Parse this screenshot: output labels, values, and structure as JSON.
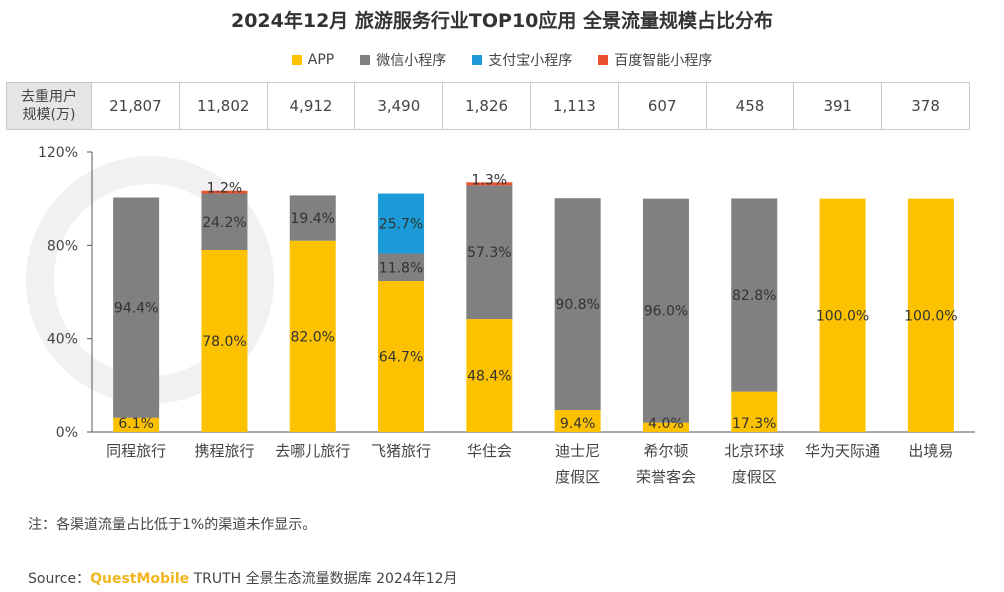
{
  "title": "2024年12月 旅游服务行业TOP10应用 全景流量规模占比分布",
  "table": {
    "header": "去重用户规模(万)",
    "values": [
      "21,807",
      "11,802",
      "4,912",
      "3,490",
      "1,826",
      "1,113",
      "607",
      "458",
      "391",
      "378"
    ]
  },
  "note": "注：各渠道流量占比低于1%的渠道未作显示。",
  "source": {
    "prefix": "Source：",
    "brand": "QuestMobile",
    "rest": " TRUTH 全景生态流量数据库 2024年12月"
  },
  "chart_data": {
    "type": "bar",
    "stacked": true,
    "categories": [
      [
        "同程旅行"
      ],
      [
        "携程旅行"
      ],
      [
        "去哪儿旅行"
      ],
      [
        "飞猪旅行"
      ],
      [
        "华住会"
      ],
      [
        "迪士尼",
        "度假区"
      ],
      [
        "希尔顿",
        "荣誉客会"
      ],
      [
        "北京环球",
        "度假区"
      ],
      [
        "华为天际通"
      ],
      [
        "出境易"
      ]
    ],
    "ylim": [
      0,
      120
    ],
    "yticks": [
      "0%",
      "40%",
      "80%",
      "120%"
    ],
    "ytick_values": [
      0,
      40,
      80,
      120
    ],
    "grid": false,
    "legend_position": "top",
    "series": [
      {
        "name": "APP",
        "color": "#fcc200",
        "values": [
          6.1,
          78.0,
          82.0,
          64.7,
          48.4,
          9.4,
          4.0,
          17.3,
          100.0,
          100.0
        ],
        "labels": [
          "6.1%",
          "78.0%",
          "82.0%",
          "64.7%",
          "48.4%",
          "9.4%",
          "4.0%",
          "17.3%",
          "100.0%",
          "100.0%"
        ]
      },
      {
        "name": "微信小程序",
        "color": "#808080",
        "values": [
          94.4,
          24.2,
          19.4,
          11.8,
          57.3,
          90.8,
          96.0,
          82.8,
          0,
          0
        ],
        "labels": [
          "94.4%",
          "24.2%",
          "19.4%",
          "11.8%",
          "57.3%",
          "90.8%",
          "96.0%",
          "82.8%",
          "",
          ""
        ]
      },
      {
        "name": "支付宝小程序",
        "color": "#1a9bd7",
        "values": [
          0,
          0,
          0,
          25.7,
          0,
          0,
          0,
          0,
          0,
          0
        ],
        "labels": [
          "",
          "",
          "",
          "25.7%",
          "",
          "",
          "",
          "",
          "",
          ""
        ]
      },
      {
        "name": "百度智能小程序",
        "color": "#e8502e",
        "values": [
          0,
          1.2,
          0,
          0,
          1.3,
          0,
          0,
          0,
          0,
          0
        ],
        "labels": [
          "",
          "1.2%",
          "",
          "",
          "1.3%",
          "",
          "",
          "",
          "",
          ""
        ]
      }
    ]
  }
}
